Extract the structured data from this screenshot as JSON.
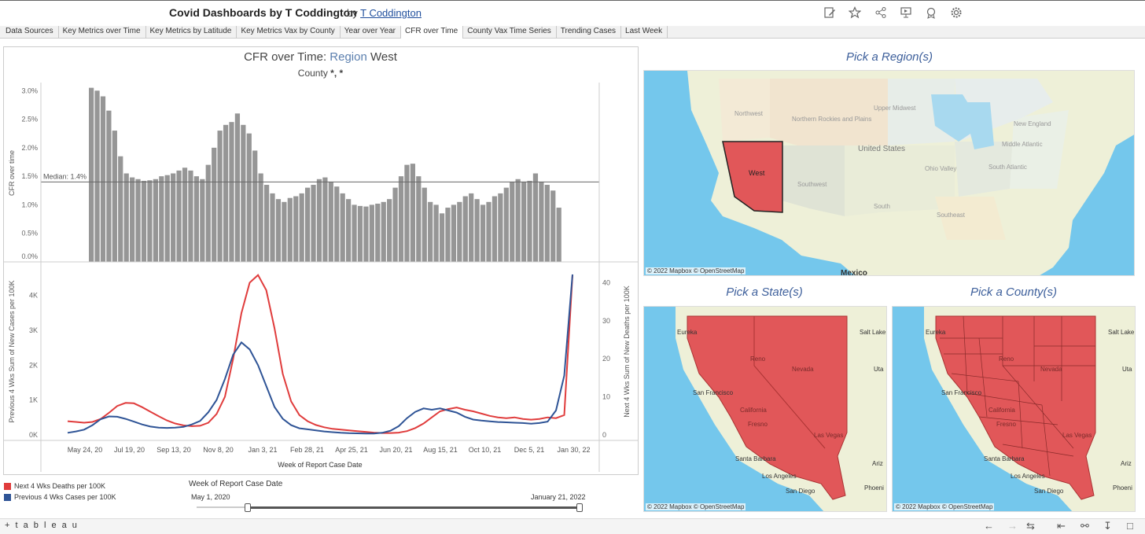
{
  "header": {
    "title": "Covid Dashboards by T Coddington",
    "by": "by",
    "author": "T Coddington"
  },
  "toolbar_icons": [
    "edit-icon",
    "favorite-star-icon",
    "share-icon",
    "present-icon",
    "subscribe-icon",
    "settings-gear-icon"
  ],
  "tabs": [
    {
      "label": "Data Sources"
    },
    {
      "label": "Key Metrics over Time"
    },
    {
      "label": "Key Metrics by Latitude"
    },
    {
      "label": "Key Metrics Vax by County"
    },
    {
      "label": "Year over Year"
    },
    {
      "label": "CFR over Time",
      "active": true
    },
    {
      "label": "County Vax Time Series"
    },
    {
      "label": "Trending Cases"
    },
    {
      "label": "Last Week"
    }
  ],
  "chart": {
    "title_prefix": "CFR over Time: ",
    "title_region_label": "Region",
    "title_region_value": "West",
    "subtitle_label": "County",
    "subtitle_value": "*, *",
    "median_label": "Median: 1.4%",
    "x_axis_title": "Week of Report Case Date"
  },
  "chart_data": [
    {
      "type": "bar",
      "ylabel": "CFR over time",
      "ylim": [
        0,
        3.1
      ],
      "yticks": [
        "0.0%",
        "0.5%",
        "1.0%",
        "1.5%",
        "2.0%",
        "2.5%",
        "3.0%"
      ],
      "median": 1.4,
      "values": [
        3.05,
        3.0,
        2.9,
        2.65,
        2.3,
        1.85,
        1.55,
        1.48,
        1.45,
        1.42,
        1.43,
        1.45,
        1.5,
        1.52,
        1.55,
        1.6,
        1.65,
        1.6,
        1.5,
        1.45,
        1.7,
        2.0,
        2.3,
        2.4,
        2.45,
        2.6,
        2.4,
        2.25,
        1.95,
        1.55,
        1.35,
        1.2,
        1.1,
        1.05,
        1.12,
        1.15,
        1.2,
        1.3,
        1.35,
        1.45,
        1.48,
        1.4,
        1.32,
        1.2,
        1.1,
        1.0,
        0.98,
        0.97,
        1.0,
        1.02,
        1.05,
        1.1,
        1.3,
        1.5,
        1.7,
        1.72,
        1.5,
        1.3,
        1.05,
        1.0,
        0.85,
        0.95,
        1.0,
        1.05,
        1.15,
        1.2,
        1.1,
        1.0,
        1.05,
        1.15,
        1.2,
        1.3,
        1.4,
        1.45,
        1.4,
        1.42,
        1.55,
        1.4,
        1.35,
        1.25,
        0.95
      ]
    },
    {
      "type": "line",
      "x_ticks": [
        "May 24, 20",
        "Jul 19, 20",
        "Sep 13, 20",
        "Nov 8, 20",
        "Jan 3, 21",
        "Feb 28, 21",
        "Apr 25, 21",
        "Jun 20, 21",
        "Aug 15, 21",
        "Oct 10, 21",
        "Dec 5, 21",
        "Jan 30, 22"
      ],
      "y_left_label": "Previous 4 Wks Sum of New Cases per 100K",
      "y_left_ticks": [
        "0K",
        "1K",
        "2K",
        "3K",
        "4K"
      ],
      "y_left_lim": [
        0,
        4800
      ],
      "y_right_label": "Next 4 Wks Sum of New Deaths per 100K",
      "y_right_ticks": [
        "0",
        "10",
        "20",
        "30",
        "40"
      ],
      "y_right_lim": [
        0,
        44
      ],
      "series": [
        {
          "name": "Next 4 Wks Deaths per 100K",
          "color": "#e03c3c",
          "axis": "right",
          "values": [
            3.6,
            3.4,
            3.2,
            3.4,
            4.2,
            5.8,
            7.6,
            8.4,
            8.3,
            7.3,
            6.1,
            4.9,
            3.8,
            3.0,
            2.5,
            2.3,
            2.4,
            3.2,
            5.5,
            10,
            20,
            32,
            40,
            42,
            38,
            28,
            16,
            8.8,
            5.2,
            3.6,
            2.6,
            2.0,
            1.6,
            1.4,
            1.2,
            1.0,
            0.8,
            0.6,
            0.5,
            0.5,
            0.6,
            1.0,
            1.8,
            3.0,
            4.6,
            6.2,
            6.8,
            7.2,
            6.6,
            6.2,
            5.6,
            5.0,
            4.6,
            4.4,
            4.6,
            4.2,
            4.0,
            4.2,
            4.6,
            4.4,
            5.2,
            42
          ]
        },
        {
          "name": "Previous 4 Wks Cases per 100K",
          "color": "#2f5496",
          "axis": "left",
          "values": [
            60,
            100,
            150,
            280,
            450,
            530,
            520,
            460,
            380,
            300,
            240,
            210,
            200,
            210,
            230,
            300,
            400,
            650,
            1000,
            1600,
            2300,
            2650,
            2450,
            2000,
            1400,
            800,
            460,
            280,
            190,
            160,
            130,
            100,
            80,
            60,
            50,
            45,
            40,
            40,
            60,
            120,
            250,
            480,
            660,
            760,
            720,
            760,
            700,
            640,
            520,
            440,
            410,
            390,
            370,
            360,
            350,
            340,
            320,
            340,
            380,
            700,
            1700,
            4600
          ]
        }
      ]
    }
  ],
  "legend": [
    {
      "label": "Next 4 Wks Deaths per 100K",
      "color": "#e03c3c"
    },
    {
      "label": "Previous 4 Wks Cases per 100K",
      "color": "#2f5496"
    }
  ],
  "slider": {
    "title": "Week of Report Case Date",
    "start": "May 1, 2020",
    "end": "January 21, 2022"
  },
  "maps": {
    "region_title": "Pick a Region(s)",
    "state_title": "Pick a State(s)",
    "county_title": "Pick a County(s)",
    "credit": "© 2022 Mapbox  © OpenStreetMap",
    "region_labels": {
      "northwest": "Northwest",
      "rockies": "Northern Rockies and Plains",
      "upper_midwest": "Upper Midwest",
      "new_england": "New England",
      "middle_atlantic": "Middle Atlantic",
      "united_states": "United States",
      "ohio_valley": "Ohio Valley",
      "south_atlantic": "South Atlantic",
      "southwest": "Southwest",
      "south": "South",
      "southeast": "Southeast",
      "west": "West",
      "mexico": "Mexico"
    },
    "state_labels": {
      "eureka": "Eureka",
      "salt_lake": "Salt Lake",
      "reno": "Reno",
      "nevada": "Nevada",
      "uta": "Uta",
      "san_francisco": "San Francisco",
      "california": "California",
      "fresno": "Fresno",
      "las_vegas": "Las Vegas",
      "santa_barbara": "Santa Barbara",
      "los_angeles": "Los Angeles",
      "san_diego": "San Diego",
      "ariz": "Ariz",
      "phoeni": "Phoeni"
    },
    "highlight_color": "#e15759",
    "water_color": "#74c7ec",
    "land_color": "#eef0d8"
  },
  "footer": {
    "logo": "+ t a b l e a u",
    "icons": [
      "undo-icon",
      "redo-icon",
      "revert-icon",
      "reset-icon",
      "share-icon",
      "download-icon",
      "fullscreen-icon"
    ]
  }
}
